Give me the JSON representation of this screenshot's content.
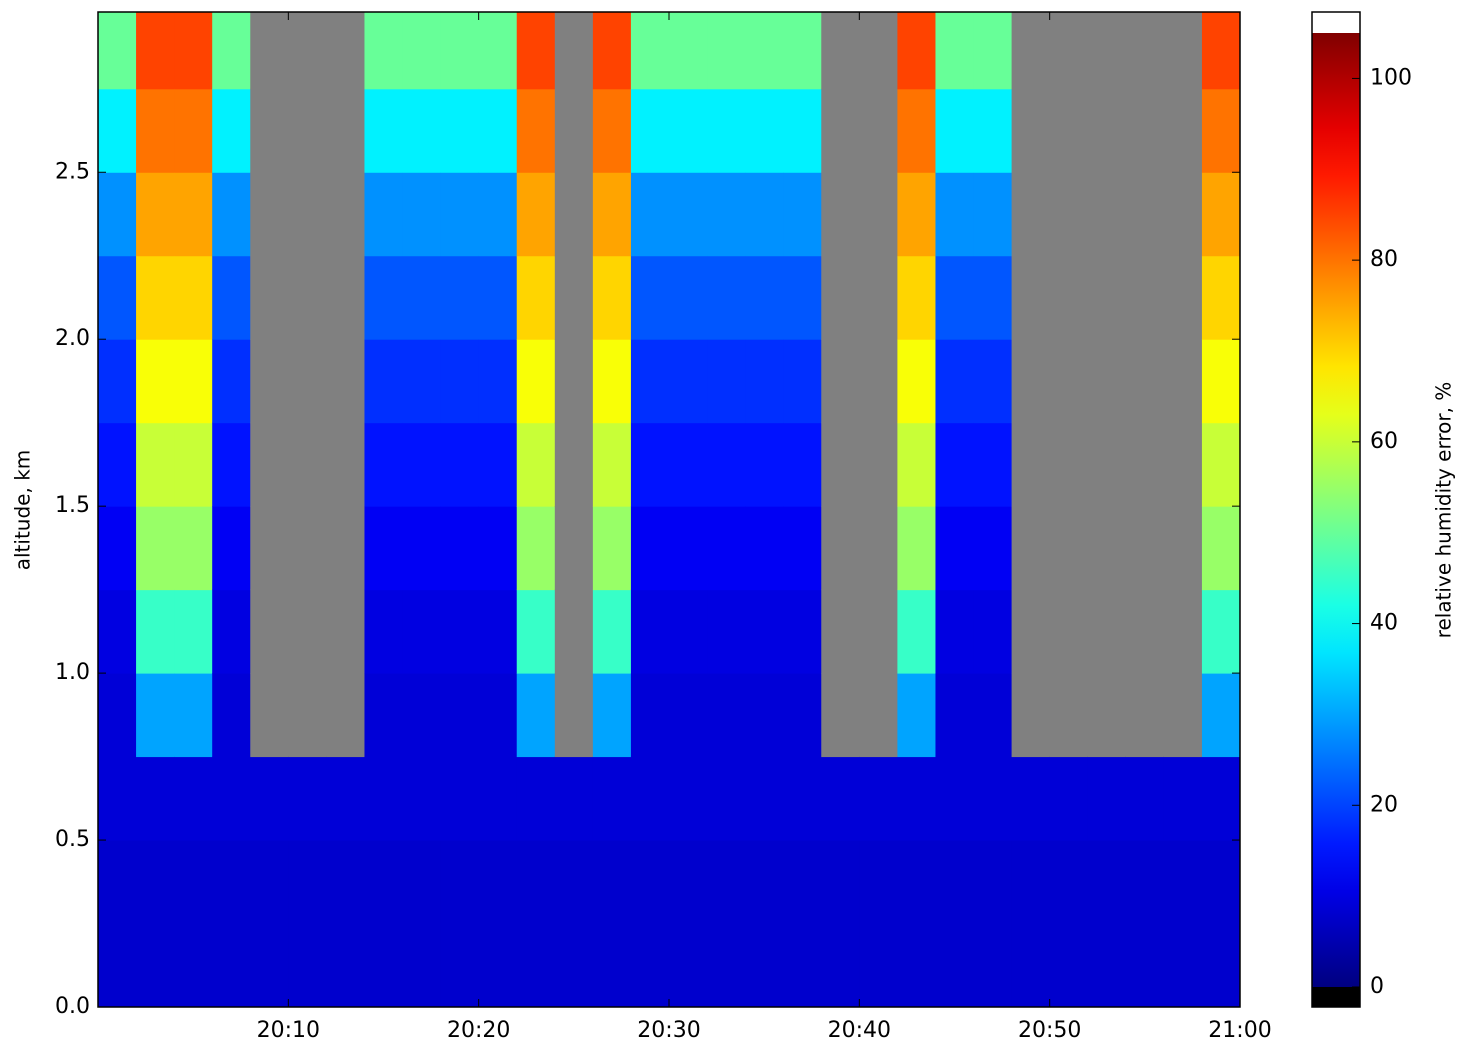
{
  "chart_data": {
    "type": "heatmap",
    "y_label": "altitude, km",
    "colorbar_label": "relative humidity error, %",
    "colormap": "jet",
    "nan_color": "#808080",
    "over_color": "#ffffff",
    "under_color": "#000000",
    "x": [
      "20:00",
      "20:02",
      "20:04",
      "20:06",
      "20:08",
      "20:10",
      "20:12",
      "20:14",
      "20:16",
      "20:18",
      "20:20",
      "20:22",
      "20:24",
      "20:26",
      "20:28",
      "20:30",
      "20:32",
      "20:34",
      "20:36",
      "20:38",
      "20:40",
      "20:42",
      "20:44",
      "20:46",
      "20:48",
      "20:50",
      "20:52",
      "20:54",
      "20:56",
      "20:58",
      "21:00"
    ],
    "y": [
      0,
      0.25,
      0.5,
      0.75,
      1,
      1.25,
      1.5,
      1.75,
      2,
      2.25,
      2.5,
      2.75,
      2.98
    ],
    "values": [
      [
        8,
        8,
        9,
        9,
        10,
        12,
        15,
        18,
        22,
        28,
        38,
        50
      ],
      [
        8,
        8,
        9,
        30,
        45,
        55,
        60,
        65,
        70,
        75,
        80,
        85
      ],
      [
        8,
        8,
        9,
        30,
        45,
        55,
        60,
        65,
        70,
        75,
        80,
        85
      ],
      [
        8,
        8,
        9,
        9,
        10,
        12,
        15,
        18,
        22,
        28,
        38,
        50
      ],
      [
        8,
        8,
        9,
        null,
        null,
        null,
        null,
        null,
        null,
        null,
        null,
        null
      ],
      [
        8,
        8,
        9,
        null,
        null,
        null,
        null,
        null,
        null,
        null,
        null,
        null
      ],
      [
        8,
        8,
        9,
        null,
        null,
        null,
        null,
        null,
        null,
        null,
        null,
        null
      ],
      [
        8,
        8,
        9,
        9,
        10,
        12,
        15,
        18,
        22,
        28,
        38,
        50
      ],
      [
        8,
        8,
        9,
        9,
        10,
        12,
        15,
        18,
        22,
        28,
        38,
        50
      ],
      [
        8,
        8,
        9,
        9,
        10,
        12,
        15,
        18,
        22,
        28,
        38,
        50
      ],
      [
        8,
        8,
        9,
        9,
        10,
        12,
        15,
        18,
        22,
        28,
        38,
        50
      ],
      [
        8,
        8,
        9,
        30,
        45,
        55,
        60,
        65,
        70,
        75,
        80,
        85
      ],
      [
        8,
        8,
        9,
        null,
        null,
        null,
        null,
        null,
        null,
        null,
        null,
        null
      ],
      [
        8,
        8,
        9,
        30,
        45,
        55,
        60,
        65,
        70,
        75,
        80,
        85
      ],
      [
        8,
        8,
        9,
        9,
        10,
        12,
        15,
        18,
        22,
        28,
        38,
        50
      ],
      [
        8,
        8,
        9,
        9,
        10,
        12,
        15,
        18,
        22,
        28,
        38,
        50
      ],
      [
        8,
        8,
        9,
        9,
        10,
        12,
        15,
        18,
        22,
        28,
        38,
        50
      ],
      [
        8,
        8,
        9,
        9,
        10,
        12,
        15,
        18,
        22,
        28,
        38,
        50
      ],
      [
        8,
        8,
        9,
        9,
        10,
        12,
        15,
        18,
        22,
        28,
        38,
        50
      ],
      [
        8,
        8,
        9,
        null,
        null,
        null,
        null,
        null,
        null,
        null,
        null,
        null
      ],
      [
        8,
        8,
        9,
        null,
        null,
        null,
        null,
        null,
        null,
        null,
        null,
        null
      ],
      [
        8,
        8,
        9,
        30,
        45,
        55,
        60,
        65,
        70,
        75,
        80,
        85
      ],
      [
        8,
        8,
        9,
        9,
        10,
        12,
        15,
        18,
        22,
        28,
        38,
        50
      ],
      [
        8,
        8,
        9,
        9,
        10,
        12,
        15,
        18,
        22,
        28,
        38,
        50
      ],
      [
        8,
        8,
        9,
        null,
        null,
        null,
        null,
        null,
        null,
        null,
        null,
        null
      ],
      [
        8,
        8,
        9,
        null,
        null,
        null,
        null,
        null,
        null,
        null,
        null,
        null
      ],
      [
        8,
        8,
        9,
        null,
        null,
        null,
        null,
        null,
        null,
        null,
        null,
        null
      ],
      [
        8,
        8,
        9,
        null,
        null,
        null,
        null,
        null,
        null,
        null,
        null,
        null
      ],
      [
        8,
        8,
        9,
        null,
        null,
        null,
        null,
        null,
        null,
        null,
        null,
        null
      ],
      [
        8,
        8,
        9,
        30,
        45,
        55,
        60,
        65,
        70,
        75,
        80,
        85
      ]
    ],
    "xlim": [
      "20:00",
      "21:00"
    ],
    "xticks": [
      "20:10",
      "20:20",
      "20:30",
      "20:40",
      "20:50",
      "21:00"
    ],
    "ylim": [
      0,
      2.98
    ],
    "yticks": [
      {
        "value": 0,
        "label": "0.0"
      },
      0.5,
      {
        "value": 1,
        "label": "1.0"
      },
      1.5,
      {
        "value": 2,
        "label": "2.0"
      },
      2.5
    ],
    "zlim": [
      0,
      105
    ],
    "zticks": [
      0,
      20,
      40,
      60,
      80,
      100
    ]
  }
}
